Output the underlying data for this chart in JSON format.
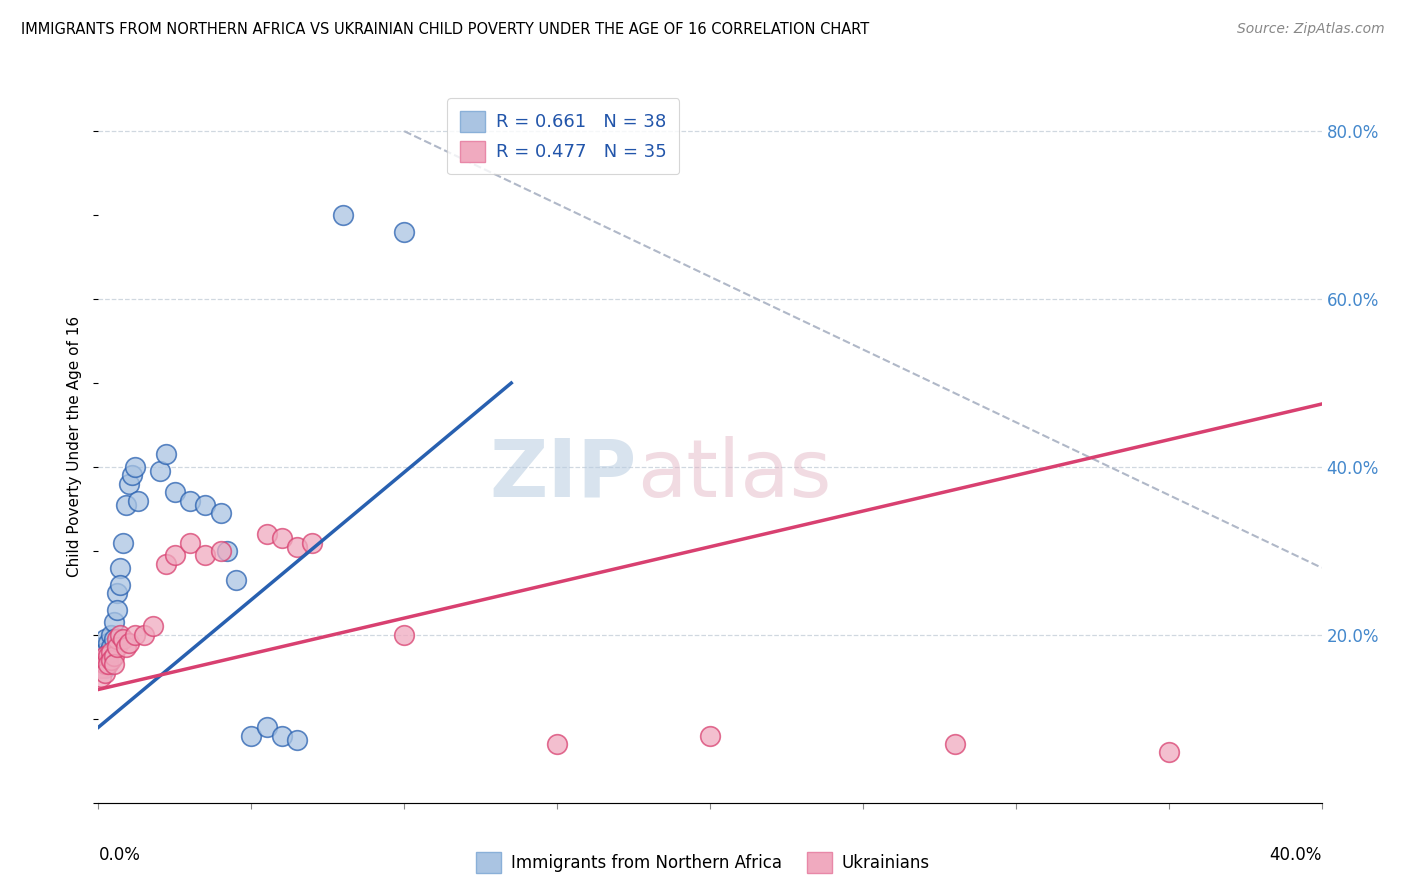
{
  "title": "IMMIGRANTS FROM NORTHERN AFRICA VS UKRAINIAN CHILD POVERTY UNDER THE AGE OF 16 CORRELATION CHART",
  "source": "Source: ZipAtlas.com",
  "ylabel": "Child Poverty Under the Age of 16",
  "legend1_label": "Immigrants from Northern Africa",
  "legend2_label": "Ukrainians",
  "R1": 0.661,
  "N1": 38,
  "R2": 0.477,
  "N2": 35,
  "color1": "#aac4e2",
  "color2": "#f0aabf",
  "line_color1": "#2860b0",
  "line_color2": "#d84070",
  "blue_scatter_x": [
    0.001,
    0.001,
    0.001,
    0.002,
    0.002,
    0.002,
    0.002,
    0.003,
    0.003,
    0.003,
    0.004,
    0.004,
    0.005,
    0.005,
    0.006,
    0.006,
    0.007,
    0.007,
    0.008,
    0.009,
    0.01,
    0.011,
    0.012,
    0.013,
    0.02,
    0.022,
    0.025,
    0.03,
    0.035,
    0.04,
    0.042,
    0.045,
    0.05,
    0.055,
    0.06,
    0.065,
    0.08,
    0.1
  ],
  "blue_scatter_y": [
    0.185,
    0.175,
    0.165,
    0.195,
    0.18,
    0.17,
    0.16,
    0.19,
    0.178,
    0.168,
    0.2,
    0.185,
    0.215,
    0.195,
    0.25,
    0.23,
    0.28,
    0.26,
    0.31,
    0.355,
    0.38,
    0.39,
    0.4,
    0.36,
    0.395,
    0.415,
    0.37,
    0.36,
    0.355,
    0.345,
    0.3,
    0.265,
    0.08,
    0.09,
    0.08,
    0.075,
    0.7,
    0.68
  ],
  "pink_scatter_x": [
    0.001,
    0.001,
    0.001,
    0.002,
    0.002,
    0.002,
    0.003,
    0.003,
    0.004,
    0.004,
    0.005,
    0.005,
    0.006,
    0.006,
    0.007,
    0.008,
    0.009,
    0.01,
    0.012,
    0.015,
    0.018,
    0.022,
    0.025,
    0.03,
    0.035,
    0.04,
    0.055,
    0.06,
    0.065,
    0.07,
    0.1,
    0.15,
    0.2,
    0.28,
    0.35
  ],
  "pink_scatter_y": [
    0.17,
    0.16,
    0.15,
    0.175,
    0.165,
    0.155,
    0.175,
    0.165,
    0.18,
    0.17,
    0.175,
    0.165,
    0.195,
    0.185,
    0.2,
    0.195,
    0.185,
    0.19,
    0.2,
    0.2,
    0.21,
    0.285,
    0.295,
    0.31,
    0.295,
    0.3,
    0.32,
    0.315,
    0.305,
    0.31,
    0.2,
    0.07,
    0.08,
    0.07,
    0.06
  ],
  "xlim": [
    0.0,
    0.4
  ],
  "ylim": [
    0.0,
    0.85
  ],
  "background_color": "#ffffff"
}
